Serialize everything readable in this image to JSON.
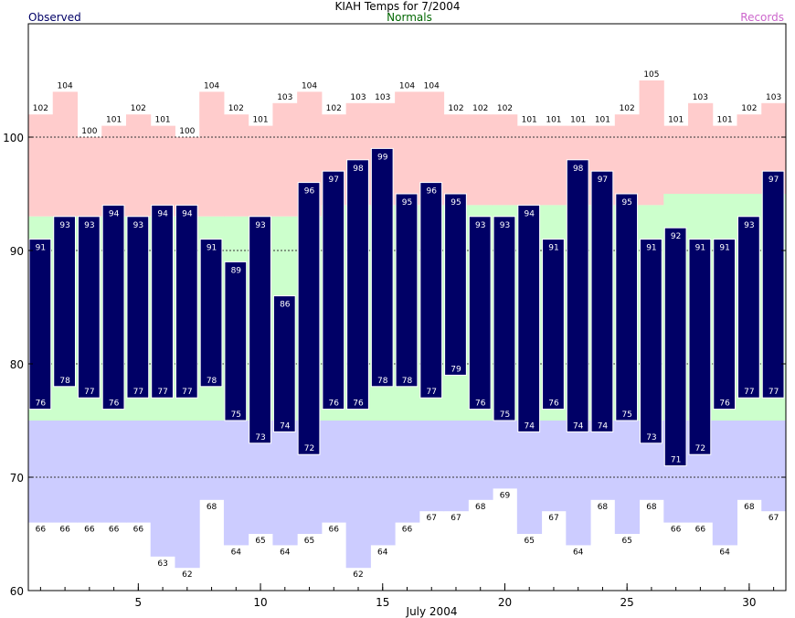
{
  "chart_data": {
    "type": "bar",
    "title": "KIAH Temps for 7/2004",
    "xlabel": "July 2004",
    "legend": {
      "observed": "Observed",
      "normals": "Normals",
      "records": "Records"
    },
    "days": [
      1,
      2,
      3,
      4,
      5,
      6,
      7,
      8,
      9,
      10,
      11,
      12,
      13,
      14,
      15,
      16,
      17,
      18,
      19,
      20,
      21,
      22,
      23,
      24,
      25,
      26,
      27,
      28,
      29,
      30,
      31
    ],
    "x_ticks": [
      5,
      10,
      15,
      20,
      25,
      30
    ],
    "x_tick_labels": [
      "5",
      "10",
      "15",
      "20",
      "25",
      "30"
    ],
    "ylim": [
      60,
      110
    ],
    "y_ticks": [
      60,
      70,
      80,
      90,
      100
    ],
    "y_tick_labels": [
      "60",
      "70",
      "80",
      "90",
      "100"
    ],
    "dashed_gridlines": [
      70,
      80,
      90,
      100
    ],
    "observed_high": [
      91,
      93,
      93,
      94,
      93,
      94,
      94,
      91,
      89,
      93,
      86,
      96,
      97,
      98,
      99,
      95,
      96,
      95,
      93,
      93,
      94,
      91,
      98,
      97,
      95,
      91,
      92,
      91,
      91,
      93,
      97
    ],
    "observed_low": [
      76,
      78,
      77,
      76,
      77,
      77,
      77,
      78,
      75,
      73,
      74,
      72,
      76,
      76,
      78,
      78,
      77,
      79,
      76,
      75,
      74,
      76,
      74,
      74,
      75,
      73,
      71,
      72,
      76,
      77,
      77
    ],
    "normal_high": [
      93,
      93,
      93,
      93,
      93,
      93,
      93,
      93,
      93,
      93,
      93,
      93,
      94,
      94,
      94,
      94,
      94,
      94,
      94,
      94,
      94,
      94,
      94,
      94,
      94,
      94,
      95,
      95,
      95,
      95,
      95
    ],
    "normal_low": [
      75,
      75,
      75,
      75,
      75,
      75,
      75,
      75,
      75,
      75,
      75,
      75,
      75,
      75,
      75,
      75,
      75,
      75,
      75,
      75,
      75,
      75,
      75,
      75,
      75,
      75,
      75,
      75,
      75,
      75,
      75
    ],
    "record_high": [
      102,
      104,
      100,
      101,
      102,
      101,
      100,
      104,
      102,
      101,
      103,
      104,
      102,
      103,
      103,
      104,
      104,
      102,
      102,
      102,
      101,
      101,
      101,
      101,
      102,
      105,
      101,
      103,
      101,
      102,
      103
    ],
    "record_low": [
      66,
      66,
      66,
      66,
      66,
      63,
      62,
      68,
      64,
      65,
      64,
      65,
      66,
      62,
      64,
      66,
      67,
      67,
      68,
      69,
      65,
      67,
      64,
      68,
      65,
      68,
      66,
      66,
      64,
      68,
      67
    ],
    "colors": {
      "observed_bar": "#000066",
      "normals_band": "#ccffcc",
      "record_high_band": "#ffcccc",
      "record_low_band": "#ccccff",
      "title": "#000000",
      "observed_legend": "#000066",
      "normals_legend": "#006600",
      "records_legend": "#cc66cc"
    }
  }
}
